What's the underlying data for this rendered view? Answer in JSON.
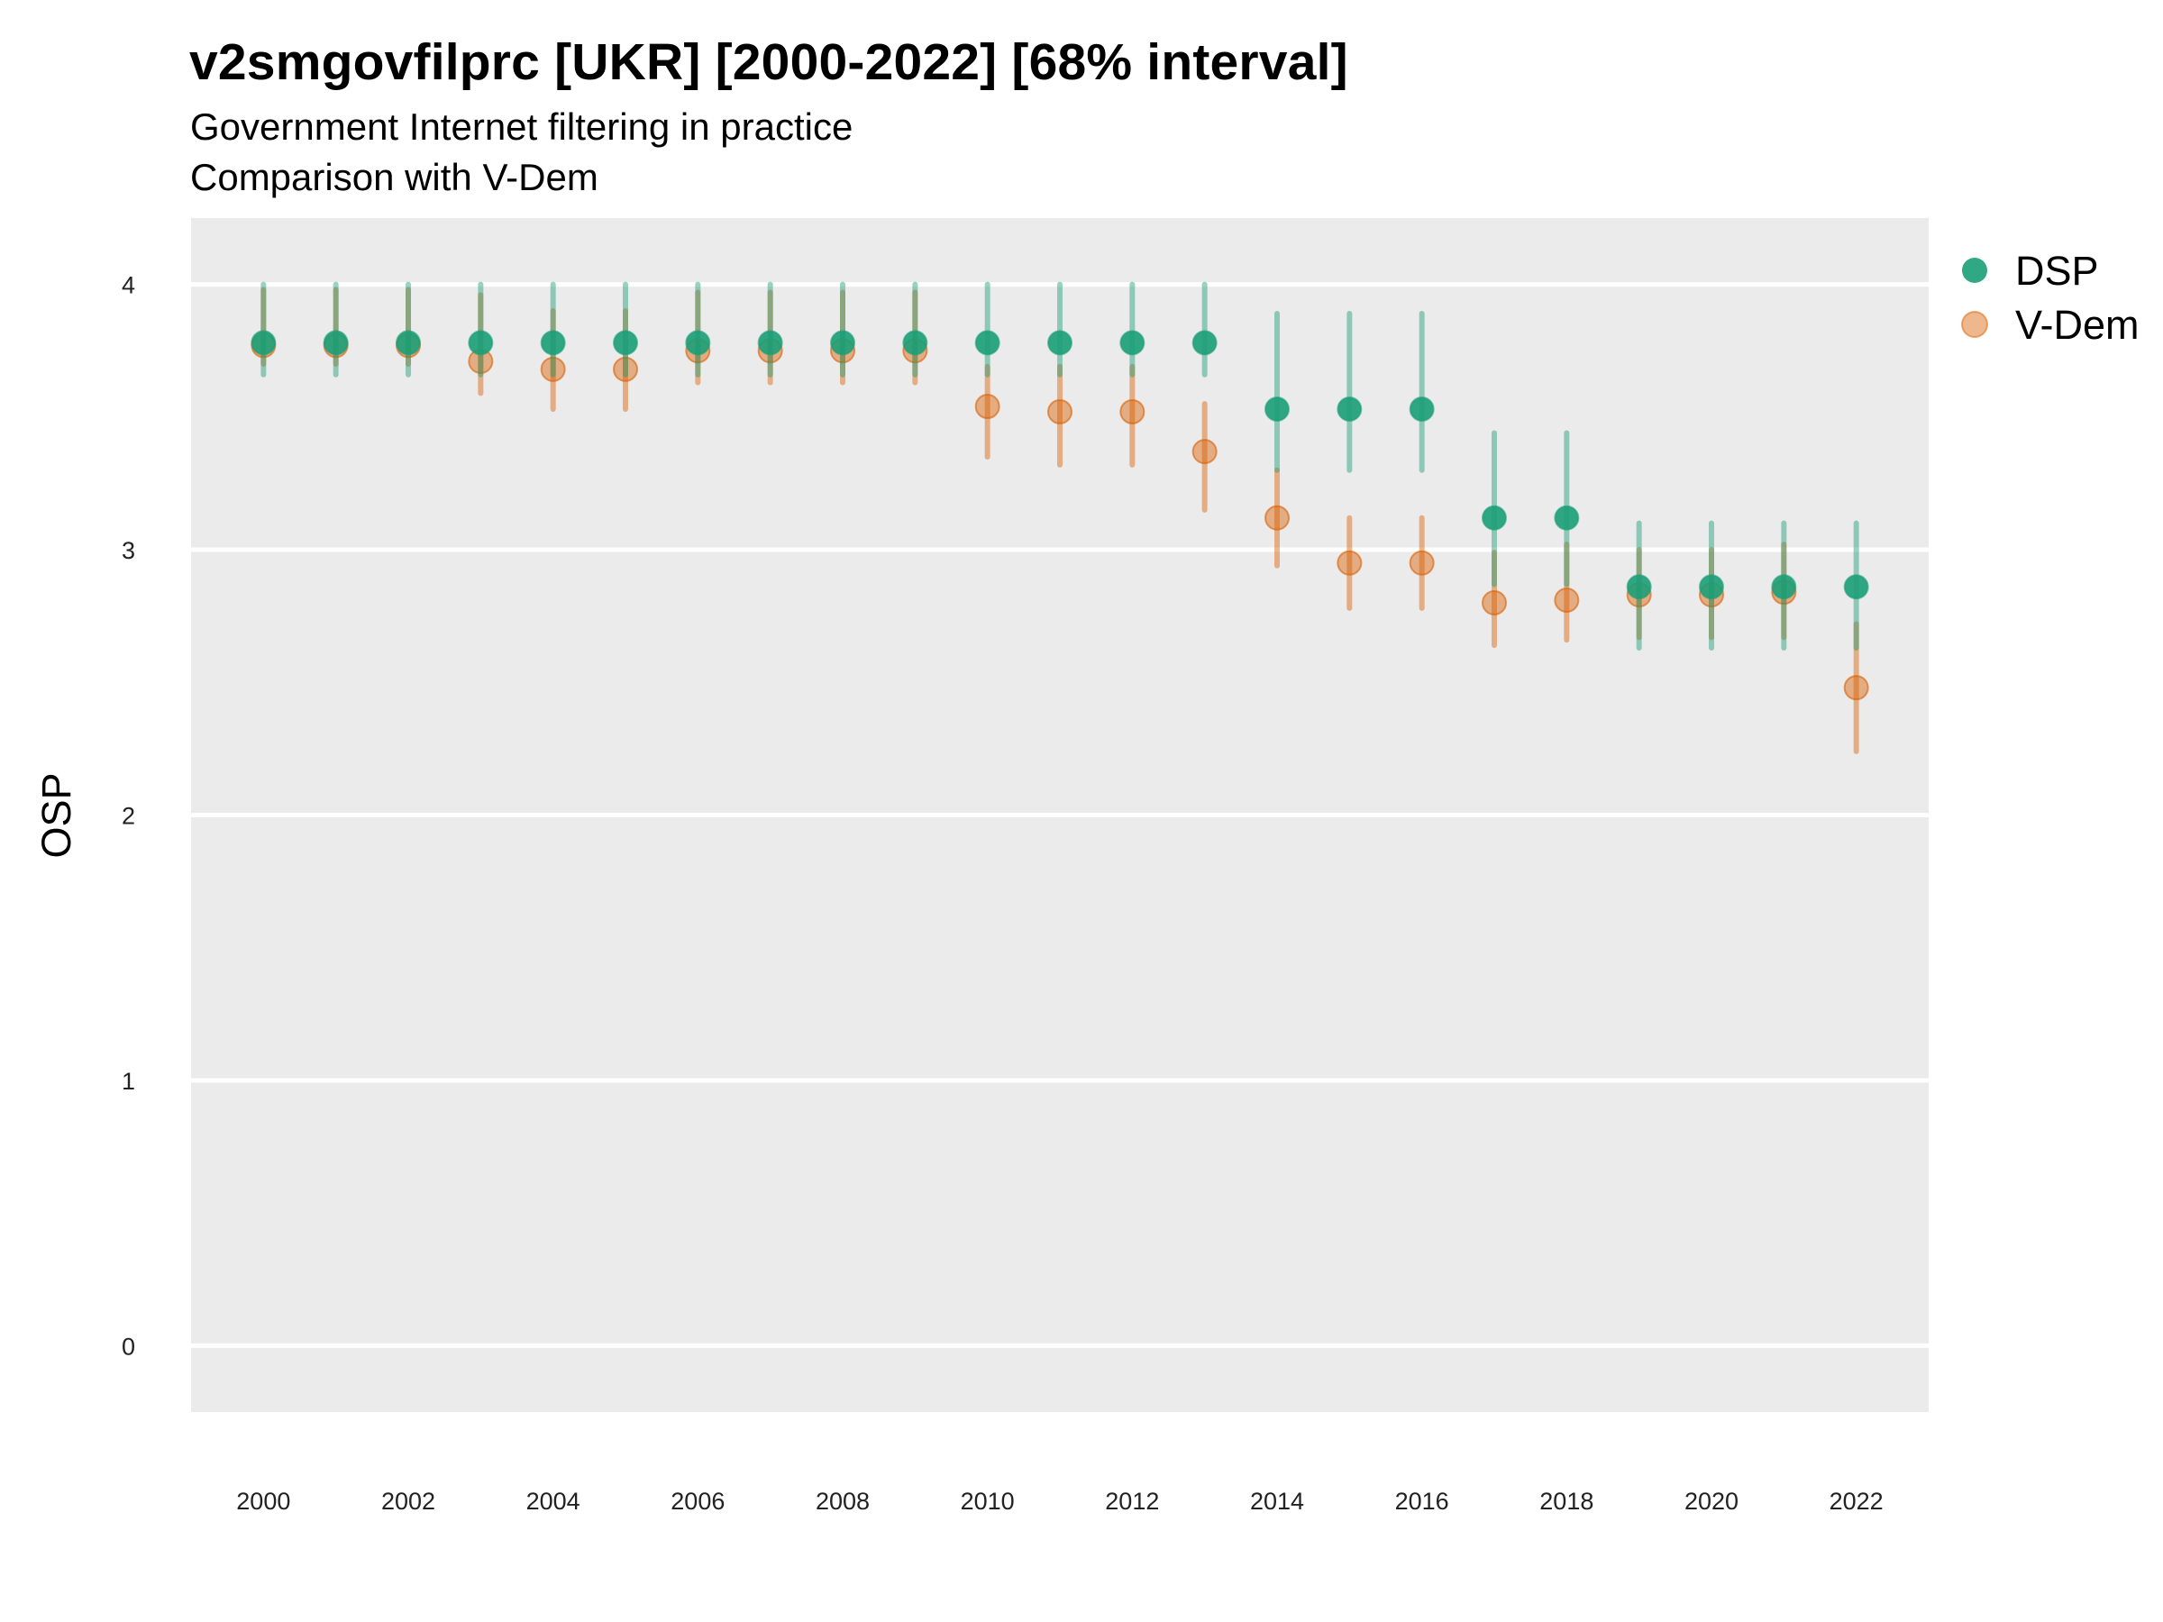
{
  "title": "v2smgovfilprc [UKR] [2000-2022] [68% interval]",
  "subtitle": "Government Internet filtering in practice",
  "subtitle2": "Comparison with V-Dem",
  "colors": {
    "DSP": "#1b9e77",
    "V-Dem": "#d95f02",
    "panel": "#ebebeb",
    "grid": "#ffffff"
  },
  "chart_data": {
    "type": "scatter",
    "title": "v2smgovfilprc [UKR] [2000-2022] [68% interval]",
    "ylabel": "OSP",
    "xlabel": "",
    "xlim": [
      1999,
      2023
    ],
    "ylim": [
      -0.25,
      4.25
    ],
    "x_ticks": [
      "2000",
      "2002",
      "2004",
      "2006",
      "2008",
      "2010",
      "2012",
      "2014",
      "2016",
      "2018",
      "2020",
      "2022"
    ],
    "y_ticks": [
      "0",
      "1",
      "2",
      "3",
      "4"
    ],
    "grid": true,
    "legend_position": "right",
    "x": [
      2000,
      2001,
      2002,
      2003,
      2004,
      2005,
      2006,
      2007,
      2008,
      2009,
      2010,
      2011,
      2012,
      2013,
      2014,
      2015,
      2016,
      2017,
      2018,
      2019,
      2020,
      2021,
      2022
    ],
    "series": [
      {
        "name": "DSP",
        "values": [
          3.78,
          3.78,
          3.78,
          3.78,
          3.78,
          3.78,
          3.78,
          3.78,
          3.78,
          3.78,
          3.78,
          3.78,
          3.78,
          3.78,
          3.53,
          3.53,
          3.53,
          3.12,
          3.12,
          2.86,
          2.86,
          2.86,
          2.86
        ],
        "lower": [
          3.66,
          3.66,
          3.66,
          3.66,
          3.66,
          3.66,
          3.66,
          3.66,
          3.66,
          3.66,
          3.66,
          3.66,
          3.66,
          3.66,
          3.3,
          3.3,
          3.3,
          2.87,
          2.87,
          2.63,
          2.63,
          2.63,
          2.63
        ],
        "upper": [
          4.0,
          4.0,
          4.0,
          4.0,
          4.0,
          4.0,
          4.0,
          4.0,
          4.0,
          4.0,
          4.0,
          4.0,
          4.0,
          4.0,
          3.89,
          3.89,
          3.89,
          3.44,
          3.44,
          3.1,
          3.1,
          3.1,
          3.1
        ]
      },
      {
        "name": "V-Dem",
        "values": [
          3.77,
          3.77,
          3.77,
          3.71,
          3.68,
          3.68,
          3.75,
          3.75,
          3.75,
          3.75,
          3.54,
          3.52,
          3.52,
          3.37,
          3.12,
          2.95,
          2.95,
          2.8,
          2.81,
          2.83,
          2.83,
          2.84,
          2.48
        ],
        "lower": [
          3.7,
          3.7,
          3.7,
          3.59,
          3.53,
          3.53,
          3.63,
          3.63,
          3.63,
          3.63,
          3.35,
          3.32,
          3.32,
          3.15,
          2.94,
          2.78,
          2.78,
          2.64,
          2.66,
          2.67,
          2.67,
          2.67,
          2.24
        ],
        "upper": [
          3.98,
          3.98,
          3.98,
          3.96,
          3.9,
          3.9,
          3.97,
          3.97,
          3.97,
          3.97,
          3.69,
          3.69,
          3.69,
          3.55,
          3.3,
          3.12,
          3.12,
          2.99,
          3.02,
          3.0,
          3.0,
          3.02,
          2.72
        ]
      }
    ]
  }
}
